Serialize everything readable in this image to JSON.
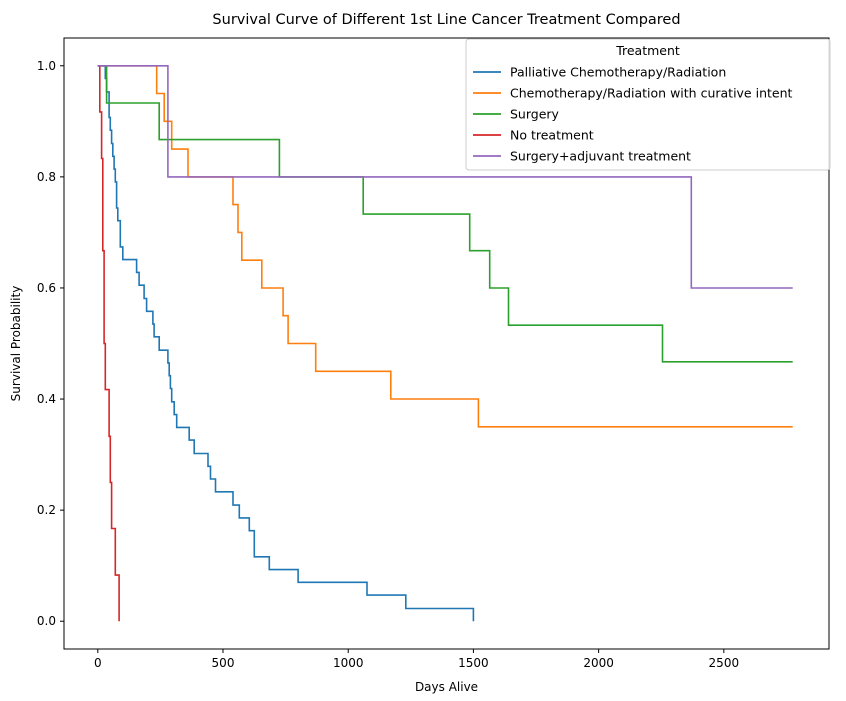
{
  "chart_data": {
    "type": "line",
    "step": true,
    "title": "Survival Curve of Different 1st Line Cancer Treatment Compared",
    "xlabel": "Days Alive",
    "ylabel": "Survival Probability",
    "xlim": [
      -135,
      2920
    ],
    "ylim": [
      -0.05,
      1.05
    ],
    "xticks": [
      0,
      500,
      1000,
      1500,
      2000,
      2500
    ],
    "yticks": [
      0.0,
      0.2,
      0.4,
      0.6,
      0.8,
      1.0
    ],
    "legend": {
      "title": "Treatment",
      "position": "top-right"
    },
    "series": [
      {
        "name": "Palliative Chemotherapy/Radiation",
        "color": "#1f77b4",
        "x": [
          0,
          30,
          35,
          45,
          50,
          55,
          60,
          65,
          70,
          75,
          80,
          90,
          100,
          155,
          165,
          185,
          195,
          220,
          225,
          245,
          255,
          280,
          285,
          290,
          295,
          305,
          310,
          315,
          320,
          335,
          365,
          385,
          420,
          440,
          450,
          455,
          470,
          520,
          540,
          565,
          590,
          605,
          625,
          655,
          685,
          800,
          1075,
          1130,
          1230,
          1500
        ],
        "y": [
          1.0,
          0.977,
          0.953,
          0.907,
          0.884,
          0.86,
          0.837,
          0.814,
          0.791,
          0.744,
          0.721,
          0.674,
          0.651,
          0.628,
          0.605,
          0.581,
          0.558,
          0.535,
          0.512,
          0.488,
          0.488,
          0.465,
          0.442,
          0.419,
          0.395,
          0.372,
          0.372,
          0.349,
          0.349,
          0.349,
          0.326,
          0.302,
          0.302,
          0.279,
          0.256,
          0.256,
          0.233,
          0.233,
          0.209,
          0.186,
          0.186,
          0.163,
          0.116,
          0.116,
          0.093,
          0.07,
          0.047,
          0.047,
          0.023,
          0.0
        ]
      },
      {
        "name": "Chemotherapy/Radiation with curative intent",
        "color": "#ff7f0e",
        "x": [
          0,
          235,
          265,
          295,
          360,
          540,
          560,
          575,
          590,
          655,
          740,
          760,
          870,
          1170,
          1520,
          2775
        ],
        "y": [
          1.0,
          0.95,
          0.9,
          0.85,
          0.8,
          0.75,
          0.7,
          0.65,
          0.65,
          0.6,
          0.55,
          0.5,
          0.45,
          0.4,
          0.35,
          0.35
        ]
      },
      {
        "name": "Surgery",
        "color": "#2ca02c",
        "x": [
          0,
          35,
          245,
          725,
          1060,
          1485,
          1565,
          1640,
          2255,
          2775
        ],
        "y": [
          1.0,
          0.933,
          0.867,
          0.8,
          0.733,
          0.667,
          0.6,
          0.533,
          0.467,
          0.467
        ]
      },
      {
        "name": "No treatment",
        "color": "#d62728",
        "x": [
          0,
          8,
          15,
          20,
          25,
          30,
          35,
          45,
          50,
          55,
          70,
          85
        ],
        "y": [
          1.0,
          0.917,
          0.833,
          0.667,
          0.5,
          0.417,
          0.417,
          0.333,
          0.25,
          0.167,
          0.083,
          0.0
        ]
      },
      {
        "name": "Surgery+adjuvant treatment",
        "color": "#9467bd",
        "x": [
          0,
          280,
          2370,
          2775
        ],
        "y": [
          1.0,
          0.8,
          0.6,
          0.6
        ]
      }
    ]
  }
}
